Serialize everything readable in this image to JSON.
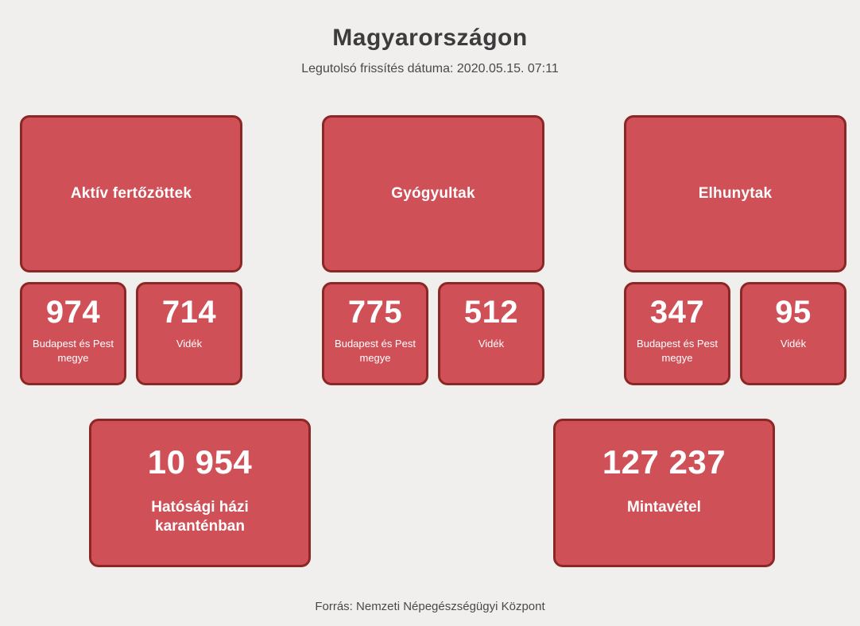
{
  "page": {
    "title": "Magyarországon",
    "subtitle": "Legutolsó frissítés dátuma: 2020.05.15. 07:11",
    "footer": "Forrás: Nemzeti Népegészségügyi Központ"
  },
  "colors": {
    "page_bg": "#f0efee",
    "card_bg": "#d05058",
    "card_border": "#8b2725",
    "card_text": "#ffffff",
    "heading_text": "#3d3c3c"
  },
  "stats": [
    {
      "label": "Aktív fertőzöttek",
      "regions": [
        {
          "value": "974",
          "label": "Budapest és Pest megye"
        },
        {
          "value": "714",
          "label": "Vidék"
        }
      ]
    },
    {
      "label": "Gyógyultak",
      "regions": [
        {
          "value": "775",
          "label": "Budapest és Pest megye"
        },
        {
          "value": "512",
          "label": "Vidék"
        }
      ]
    },
    {
      "label": "Elhunytak",
      "regions": [
        {
          "value": "347",
          "label": "Budapest és Pest megye"
        },
        {
          "value": "95",
          "label": "Vidék"
        }
      ]
    }
  ],
  "totals": [
    {
      "value": "10 954",
      "label": "Hatósági házi karanténban"
    },
    {
      "value": "127 237",
      "label": "Mintavétel"
    }
  ]
}
